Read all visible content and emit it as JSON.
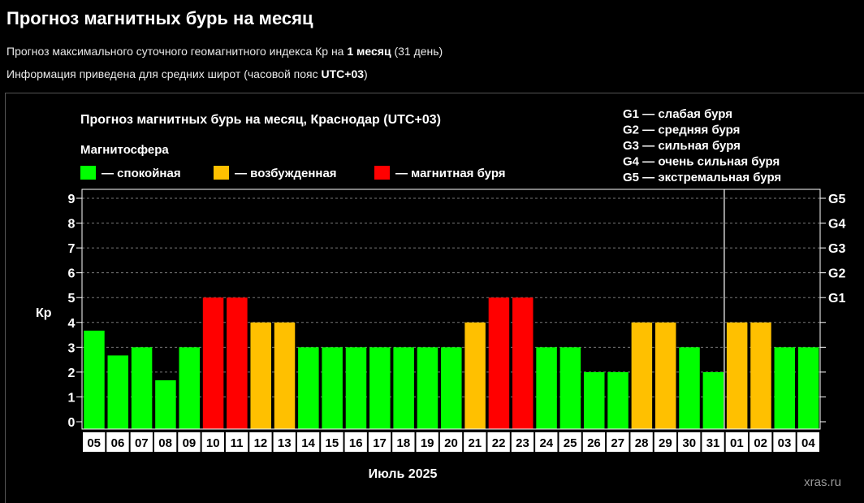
{
  "header": {
    "title": "Прогноз магнитных бурь на месяц",
    "subtitle1": {
      "prefix": "Прогноз максимального суточного геомагнитного индекса Кр на ",
      "strong": "1 месяц",
      "suffix": " (31 день)"
    },
    "subtitle2": {
      "prefix": "Информация приведена для средних широт (часовой пояс ",
      "strong": "UTC+03",
      "suffix": ")"
    }
  },
  "legend": {
    "title": "Магнитосфера",
    "items": [
      {
        "label": "— спокойная",
        "color": "#00ff00"
      },
      {
        "label": "— возбужденная",
        "color": "#ffc000"
      },
      {
        "label": "— магнитная буря",
        "color": "#ff0000"
      }
    ],
    "storm_levels": [
      "G1 — слабая буря",
      "G2 — средняя буря",
      "G3 — сильная буря",
      "G4 — очень сильная буря",
      "G5 — экстремальная буря"
    ]
  },
  "watermark": "xras.ru",
  "chart_data": {
    "type": "bar",
    "title": "Прогноз магнитных бурь на месяц, Краснодар (UTC+03)",
    "xlabel": "Июль 2025",
    "ylabel": "Кр",
    "ylim": [
      0,
      9
    ],
    "yticks": [
      "0",
      "1",
      "2",
      "3",
      "4",
      "5",
      "6",
      "7",
      "8",
      "9"
    ],
    "right_ticks": [
      {
        "value": 5,
        "label": "G1"
      },
      {
        "value": 6,
        "label": "G2"
      },
      {
        "value": 7,
        "label": "G3"
      },
      {
        "value": 8,
        "label": "G4"
      },
      {
        "value": 9,
        "label": "G5"
      }
    ],
    "grid": "horizontal dashed",
    "legend_position": "top",
    "month_separator_after_index": 26,
    "categories": [
      "05",
      "06",
      "07",
      "08",
      "09",
      "10",
      "11",
      "12",
      "13",
      "14",
      "15",
      "16",
      "17",
      "18",
      "19",
      "20",
      "21",
      "22",
      "23",
      "24",
      "25",
      "26",
      "27",
      "28",
      "29",
      "30",
      "31",
      "01",
      "02",
      "03",
      "04"
    ],
    "values": [
      3.67,
      2.67,
      3,
      1.67,
      3,
      5,
      5,
      4,
      4,
      3,
      3,
      3,
      3,
      3,
      3,
      3,
      4,
      5,
      5,
      3,
      3,
      2,
      2,
      4,
      4,
      3,
      2,
      4,
      4,
      3,
      3
    ],
    "colors": {
      "quiet": "#00ff00",
      "active": "#ffc000",
      "storm": "#ff0000"
    }
  }
}
